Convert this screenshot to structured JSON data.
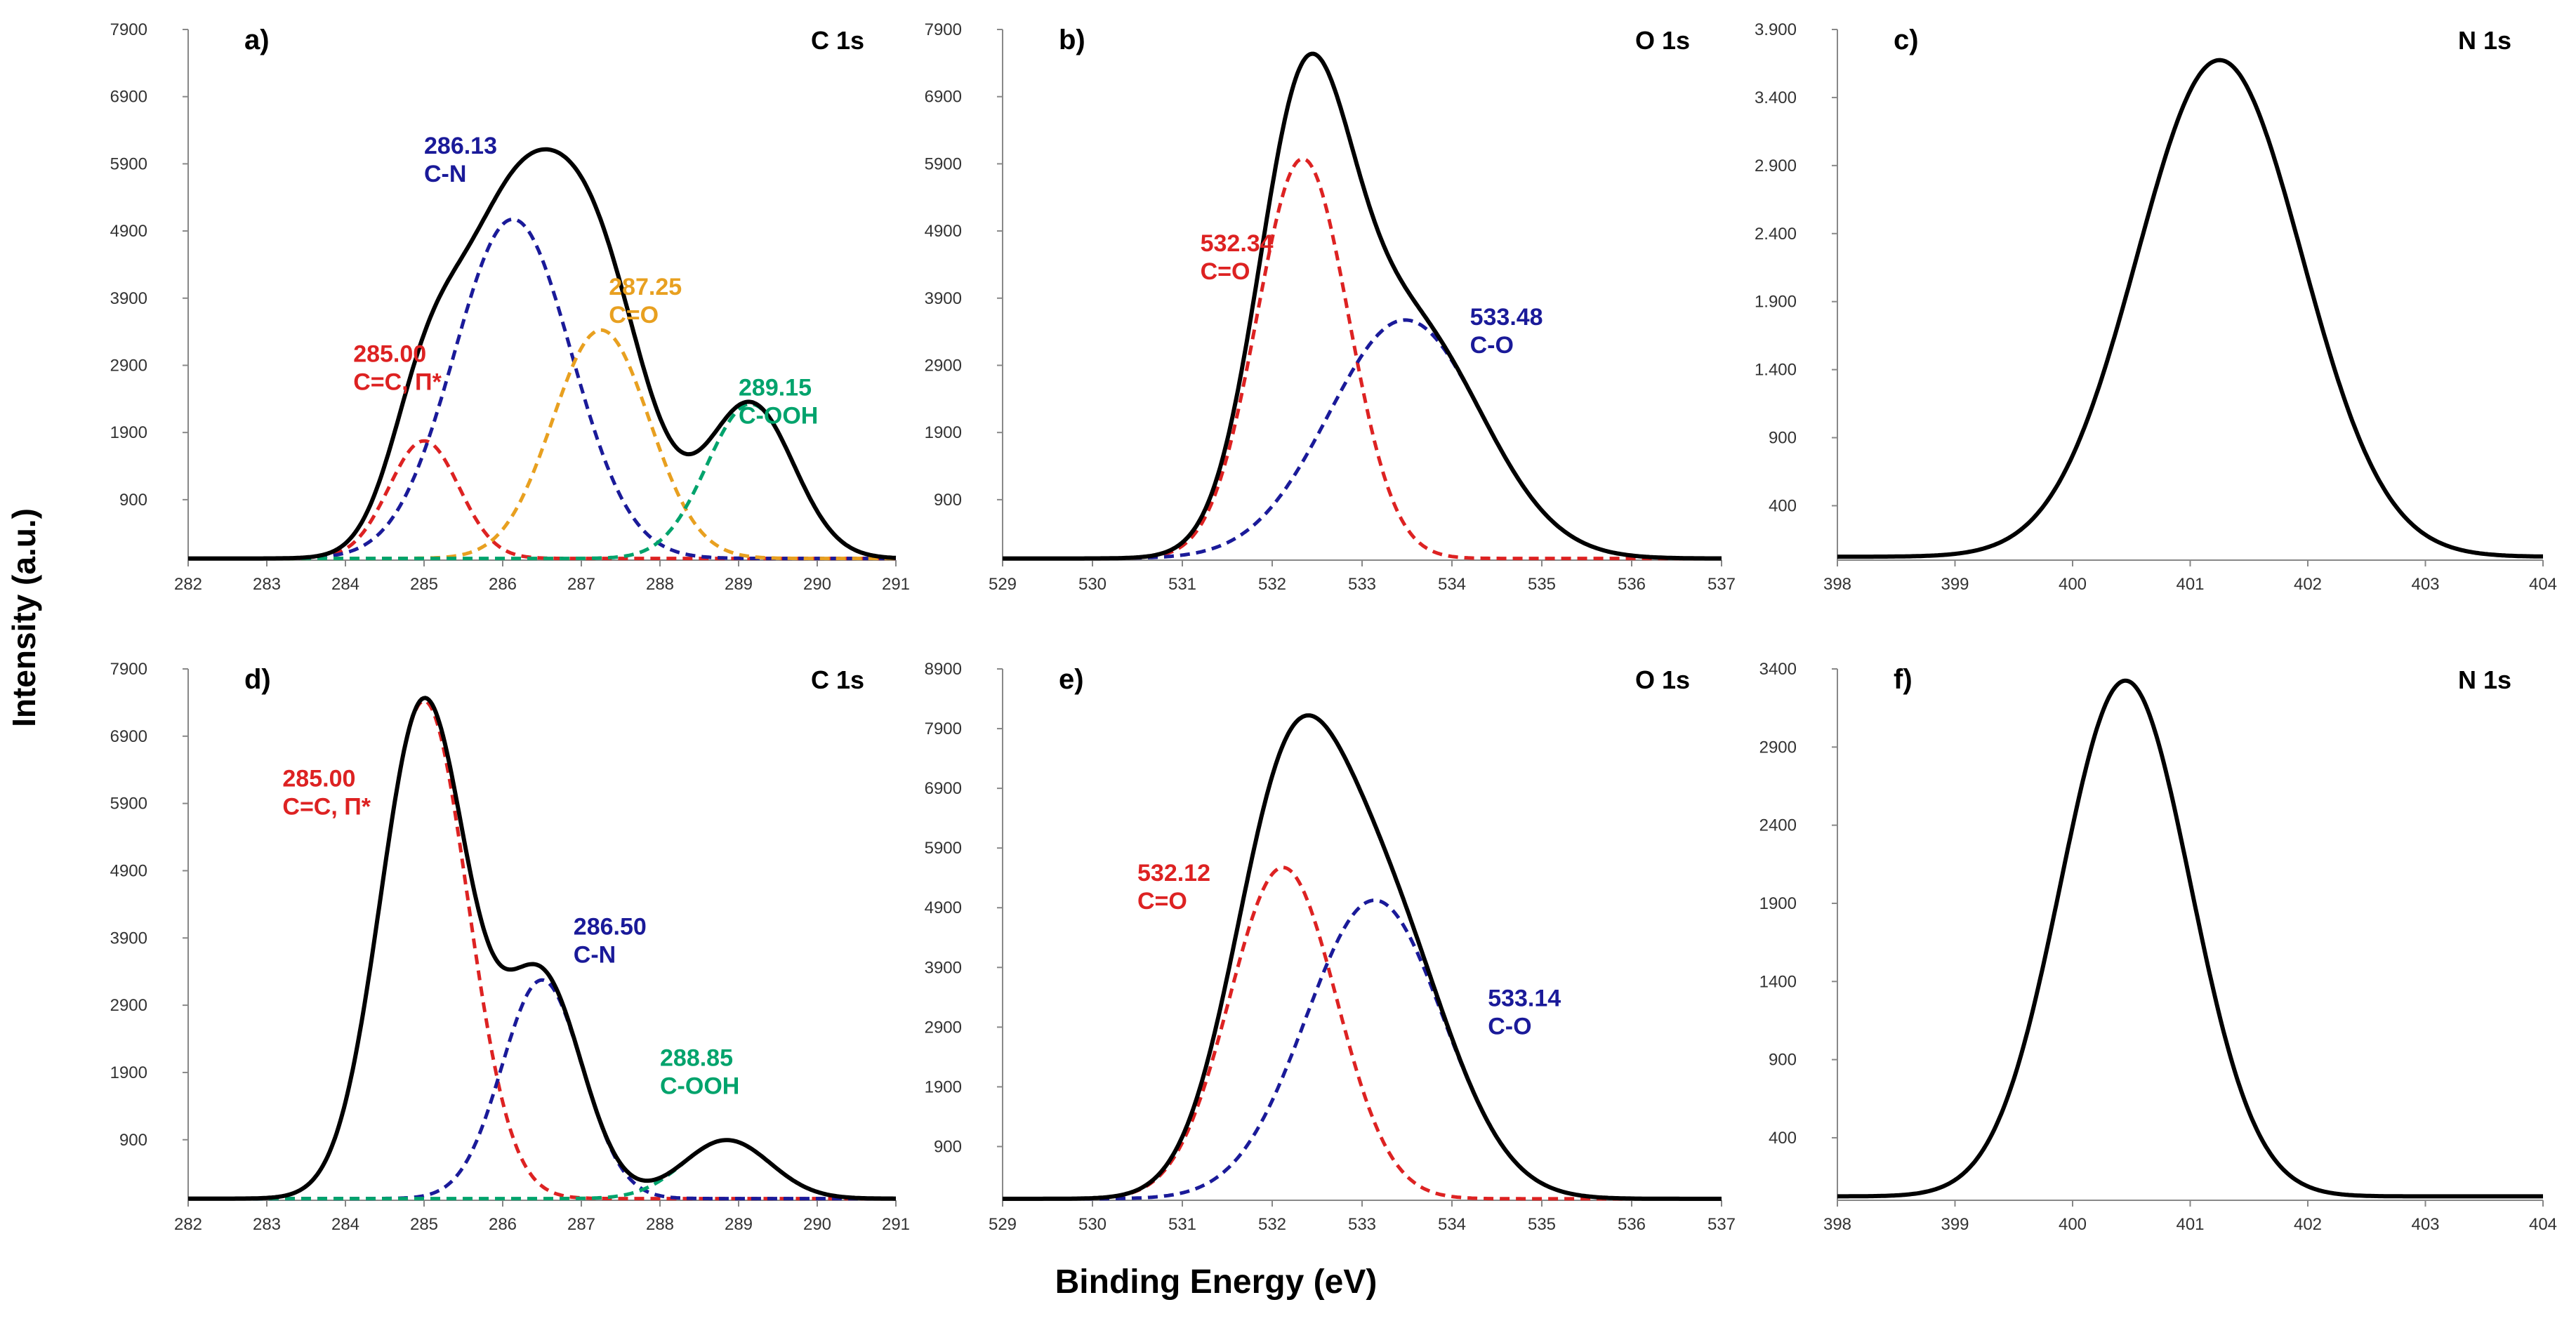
{
  "figure": {
    "ylabel": "Intensity (a.u.)",
    "xlabel": "Binding Energy (eV)"
  },
  "colors": {
    "total": "#000000",
    "red": "#dd2222",
    "blue": "#1a1a99",
    "orange": "#e8a020",
    "green": "#00a36c",
    "axis": "#888888"
  },
  "chart_data": [
    {
      "id": "a",
      "type": "line",
      "panel_label": "a)",
      "title": "C 1s",
      "xlim": [
        282,
        291
      ],
      "ylim": [
        0,
        7900
      ],
      "xticks": [
        "282",
        "283",
        "284",
        "285",
        "286",
        "287",
        "288",
        "289",
        "290",
        "291"
      ],
      "yticks": [
        "900",
        "1900",
        "2900",
        "3900",
        "4900",
        "5900",
        "6900",
        "7900"
      ],
      "series": [
        {
          "name": "285.00 C=C, Π*",
          "color": "red",
          "center": 285.0,
          "amplitude": 1750,
          "fwhm": 1.05
        },
        {
          "name": "286.13 C-N",
          "color": "blue",
          "center": 286.13,
          "amplitude": 5050,
          "fwhm": 1.75
        },
        {
          "name": "287.25 C=O",
          "color": "orange",
          "center": 287.25,
          "amplitude": 3400,
          "fwhm": 1.45
        },
        {
          "name": "289.15 C-OOH",
          "color": "green",
          "center": 289.15,
          "amplitude": 2300,
          "fwhm": 1.3
        }
      ],
      "annotations": [
        {
          "value": "286.13",
          "label": "C-N",
          "color": "blue",
          "at": [
            285.0,
            6050
          ]
        },
        {
          "value": "287.25",
          "label": "C=O",
          "color": "orange",
          "at": [
            287.35,
            3950
          ]
        },
        {
          "value": "285.00",
          "label": "C=C, Π*",
          "color": "red",
          "at": [
            284.1,
            2950
          ]
        },
        {
          "value": "289.15",
          "label": "C-OOH",
          "color": "green",
          "at": [
            289.0,
            2450
          ]
        }
      ]
    },
    {
      "id": "b",
      "type": "line",
      "panel_label": "b)",
      "title": "O 1s",
      "xlim": [
        529,
        537
      ],
      "ylim": [
        0,
        7900
      ],
      "xticks": [
        "529",
        "530",
        "531",
        "532",
        "533",
        "534",
        "535",
        "536",
        "537"
      ],
      "yticks": [
        "900",
        "1900",
        "2900",
        "3900",
        "4900",
        "5900",
        "6900",
        "7900"
      ],
      "series": [
        {
          "name": "532.34 C=O",
          "color": "red",
          "center": 532.34,
          "amplitude": 5950,
          "fwhm": 1.2
        },
        {
          "name": "533.48 C-O",
          "color": "blue",
          "center": 533.48,
          "amplitude": 3550,
          "fwhm": 2.0
        }
      ],
      "annotations": [
        {
          "value": "532.34",
          "label": "C=O",
          "color": "red",
          "at": [
            531.2,
            4600
          ]
        },
        {
          "value": "533.48",
          "label": "C-O",
          "color": "blue",
          "at": [
            534.2,
            3500
          ]
        }
      ]
    },
    {
      "id": "c",
      "type": "line",
      "panel_label": "c)",
      "title": "N 1s",
      "xlim": [
        398,
        404
      ],
      "ylim": [
        0,
        3900
      ],
      "xticks": [
        "398",
        "399",
        "400",
        "401",
        "402",
        "403",
        "404"
      ],
      "yticks": [
        "400",
        "900",
        "1.400",
        "1.900",
        "2.400",
        "2.900",
        "3.400",
        "3.900"
      ],
      "series": [
        {
          "name": "N 1s",
          "color": "total",
          "center": 401.25,
          "amplitude": 3650,
          "fwhm": 1.65
        }
      ],
      "annotations": []
    },
    {
      "id": "d",
      "type": "line",
      "panel_label": "d)",
      "title": "C 1s",
      "xlim": [
        282,
        291
      ],
      "ylim": [
        0,
        7900
      ],
      "xticks": [
        "282",
        "283",
        "284",
        "285",
        "286",
        "287",
        "288",
        "289",
        "290",
        "291"
      ],
      "yticks": [
        "900",
        "1900",
        "2900",
        "3900",
        "4900",
        "5900",
        "6900",
        "7900"
      ],
      "series": [
        {
          "name": "285.00 C=C, Π*",
          "color": "red",
          "center": 285.0,
          "amplitude": 7400,
          "fwhm": 1.3
        },
        {
          "name": "286.50 C-N",
          "color": "blue",
          "center": 286.5,
          "amplitude": 3250,
          "fwhm": 1.2
        },
        {
          "name": "288.85 C-OOH",
          "color": "green",
          "center": 288.85,
          "amplitude": 870,
          "fwhm": 1.3
        }
      ],
      "annotations": [
        {
          "value": "285.00",
          "label": "C=C, Π*",
          "color": "red",
          "at": [
            283.2,
            6150
          ]
        },
        {
          "value": "286.50",
          "label": "C-N",
          "color": "blue",
          "at": [
            286.9,
            3950
          ]
        },
        {
          "value": "288.85",
          "label": "C-OOH",
          "color": "green",
          "at": [
            288.0,
            2000
          ]
        }
      ]
    },
    {
      "id": "e",
      "type": "line",
      "panel_label": "e)",
      "title": "O 1s",
      "xlim": [
        529,
        537
      ],
      "ylim": [
        0,
        8900
      ],
      "xticks": [
        "529",
        "530",
        "531",
        "532",
        "533",
        "534",
        "535",
        "536",
        "537"
      ],
      "yticks": [
        "900",
        "1900",
        "2900",
        "3900",
        "4900",
        "5900",
        "6900",
        "7900",
        "8900"
      ],
      "series": [
        {
          "name": "532.12 C=O",
          "color": "red",
          "center": 532.12,
          "amplitude": 5550,
          "fwhm": 1.4
        },
        {
          "name": "533.14 C-O",
          "color": "blue",
          "center": 533.14,
          "amplitude": 5000,
          "fwhm": 1.8
        }
      ],
      "annotations": [
        {
          "value": "532.12",
          "label": "C=O",
          "color": "red",
          "at": [
            530.5,
            5350
          ]
        },
        {
          "value": "533.14",
          "label": "C-O",
          "color": "blue",
          "at": [
            534.4,
            3250
          ]
        }
      ]
    },
    {
      "id": "f",
      "type": "line",
      "panel_label": "f)",
      "title": "N 1s",
      "xlim": [
        398,
        404
      ],
      "ylim": [
        0,
        3400
      ],
      "xticks": [
        "398",
        "399",
        "400",
        "401",
        "402",
        "403",
        "404"
      ],
      "yticks": [
        "400",
        "900",
        "1400",
        "1900",
        "2400",
        "2900",
        "3400"
      ],
      "series": [
        {
          "name": "N 1s",
          "color": "total",
          "center": 400.45,
          "amplitude": 3300,
          "fwhm": 1.3
        }
      ],
      "annotations": []
    }
  ]
}
